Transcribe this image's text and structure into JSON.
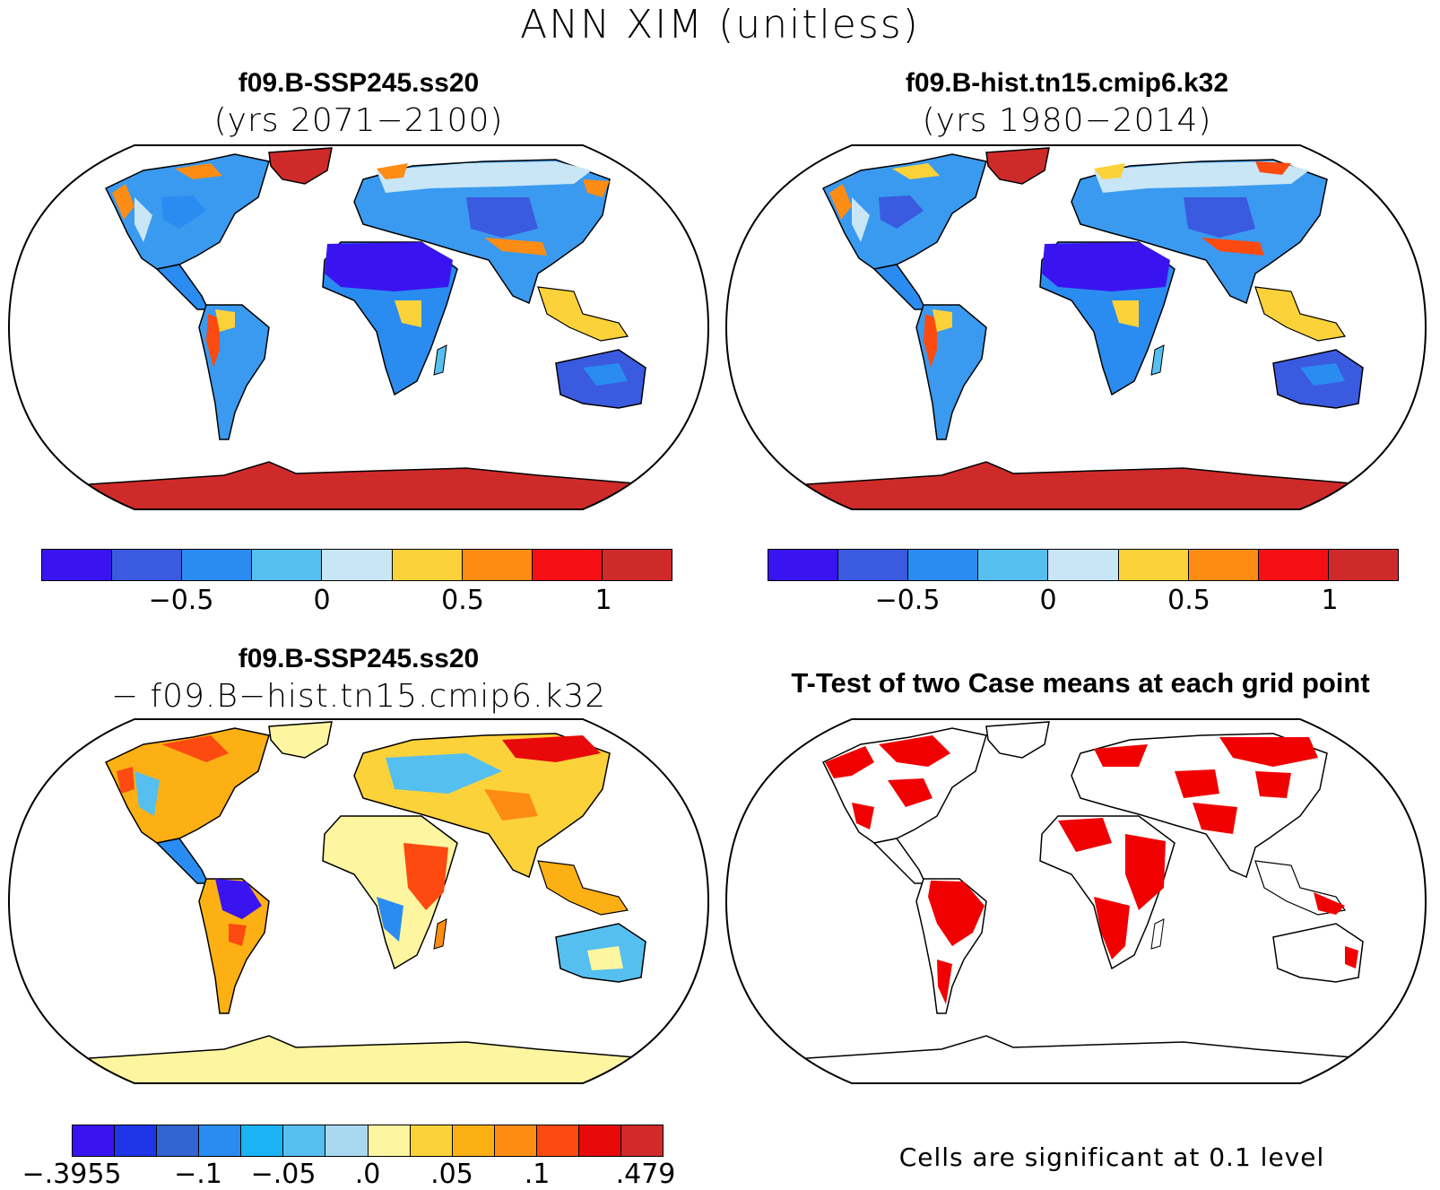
{
  "title": "ANN XIM (unitless)",
  "panels": {
    "top_left": {
      "title": "f09.B-SSP245.ss20",
      "subtitle": "(yrs 2071−2100)"
    },
    "top_right": {
      "title": "f09.B-hist.tn15.cmip6.k32",
      "subtitle": "(yrs 1980−2014)"
    },
    "bottom_left": {
      "title": "f09.B-SSP245.ss20",
      "subtitle": "− f09.B−hist.tn15.cmip6.k32"
    },
    "bottom_right": {
      "title": "T-Test of two Case means at each grid point"
    }
  },
  "colorbar_main": {
    "colors": [
      "#3a14f0",
      "#3a5ae0",
      "#2a8cf0",
      "#55bff0",
      "#c8e6f5",
      "#fcd23a",
      "#fd8c14",
      "#f50f14",
      "#cf2a2a"
    ],
    "ticks": [
      "−0.5",
      "0",
      "0.5",
      "1"
    ]
  },
  "colorbar_diff": {
    "colors": [
      "#3a14f0",
      "#1e36e8",
      "#3264d2",
      "#2a8cf0",
      "#1ab4f5",
      "#55bff0",
      "#a8d8f0",
      "#fdf5a0",
      "#fcd23a",
      "#fcb014",
      "#fd8c14",
      "#fd4a10",
      "#e80a0a",
      "#d22a2a"
    ],
    "ticks": [
      "−.3955",
      "−.1",
      "−.05",
      ".0",
      ".05",
      ".1",
      ".479"
    ]
  },
  "significance_color": "#f00000",
  "note": "Cells are significant at 0.1 level"
}
